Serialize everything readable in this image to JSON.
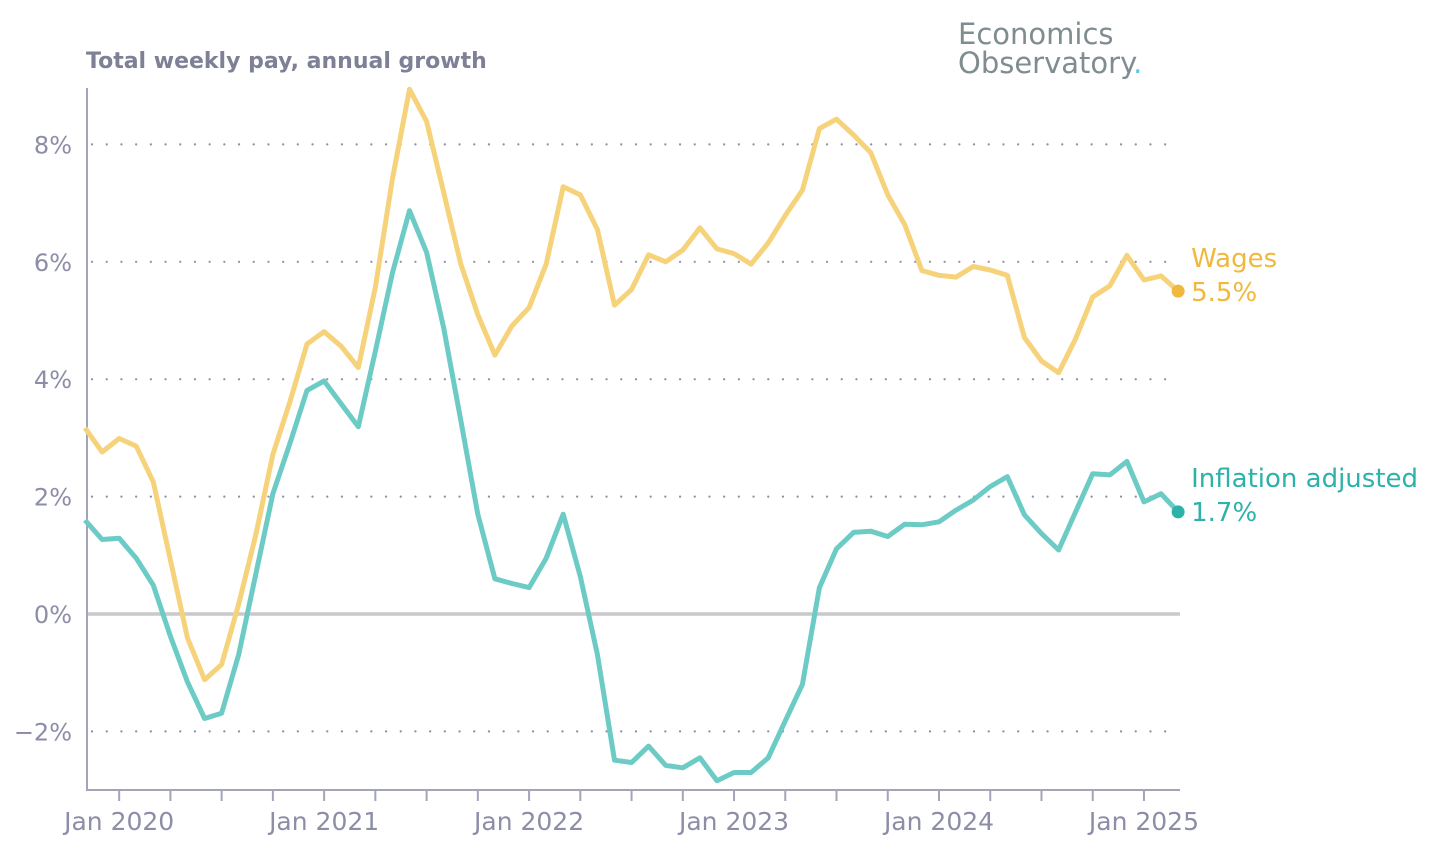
{
  "logo": {
    "line1": "Economics",
    "line2": "Observatory",
    "dot": ".",
    "dot_color": "#5fc4e0"
  },
  "chart_data": {
    "type": "line",
    "title": "Total weekly pay, annual growth",
    "xlabel": "",
    "ylabel": "",
    "ylim": [
      -3,
      9.5
    ],
    "yticks": [
      -2,
      0,
      2,
      4,
      6,
      8
    ],
    "ytick_labels": [
      "−2%",
      "0%",
      "2%",
      "4%",
      "6%",
      "8%"
    ],
    "x_start": "Nov 2019",
    "x_frequency": "monthly",
    "xtick_labels": [
      "Jan 2020",
      "Jan 2021",
      "Jan 2022",
      "Jan 2023",
      "Jan 2024",
      "Jan 2025"
    ],
    "xtick_month_index": [
      2,
      14,
      26,
      38,
      50,
      62
    ],
    "grid": "horizontal dotted",
    "legend": "end-of-line labels right",
    "series": [
      {
        "name": "Wages",
        "end_label": "5.5%",
        "color": "#f6d27a",
        "label_color": "#f0b83c",
        "values": [
          3.17,
          2.76,
          2.99,
          2.86,
          2.25,
          0.92,
          -0.41,
          -1.12,
          -0.86,
          0.17,
          1.35,
          2.72,
          3.62,
          4.6,
          4.81,
          4.56,
          4.2,
          5.57,
          7.41,
          8.94,
          8.39,
          7.18,
          5.96,
          5.1,
          4.41,
          4.91,
          5.22,
          5.96,
          7.28,
          7.14,
          6.55,
          5.26,
          5.53,
          6.12,
          6.0,
          6.2,
          6.58,
          6.22,
          6.14,
          5.96,
          6.32,
          6.79,
          7.22,
          8.27,
          8.43,
          8.16,
          7.86,
          7.14,
          6.63,
          5.85,
          5.77,
          5.74,
          5.92,
          5.86,
          5.77,
          4.71,
          4.31,
          4.11,
          4.69,
          5.4,
          5.59,
          6.11,
          5.69,
          5.76,
          5.5
        ]
      },
      {
        "name": "Inflation adjusted",
        "end_label": "1.7%",
        "color": "#6ccbc5",
        "label_color": "#2db2aa",
        "values": [
          1.6,
          1.27,
          1.29,
          0.95,
          0.49,
          -0.38,
          -1.16,
          -1.78,
          -1.69,
          -0.69,
          0.68,
          2.05,
          2.91,
          3.81,
          3.97,
          3.58,
          3.19,
          4.48,
          5.81,
          6.87,
          6.16,
          4.87,
          3.3,
          1.7,
          0.6,
          0.52,
          0.45,
          0.95,
          1.7,
          0.64,
          -0.69,
          -2.49,
          -2.53,
          -2.25,
          -2.58,
          -2.62,
          -2.45,
          -2.84,
          -2.7,
          -2.7,
          -2.45,
          -1.82,
          -1.2,
          0.45,
          1.11,
          1.39,
          1.41,
          1.32,
          1.53,
          1.52,
          1.57,
          1.77,
          1.94,
          2.17,
          2.34,
          1.69,
          1.37,
          1.09,
          1.74,
          2.39,
          2.37,
          2.6,
          1.91,
          2.05,
          1.74
        ]
      }
    ]
  }
}
